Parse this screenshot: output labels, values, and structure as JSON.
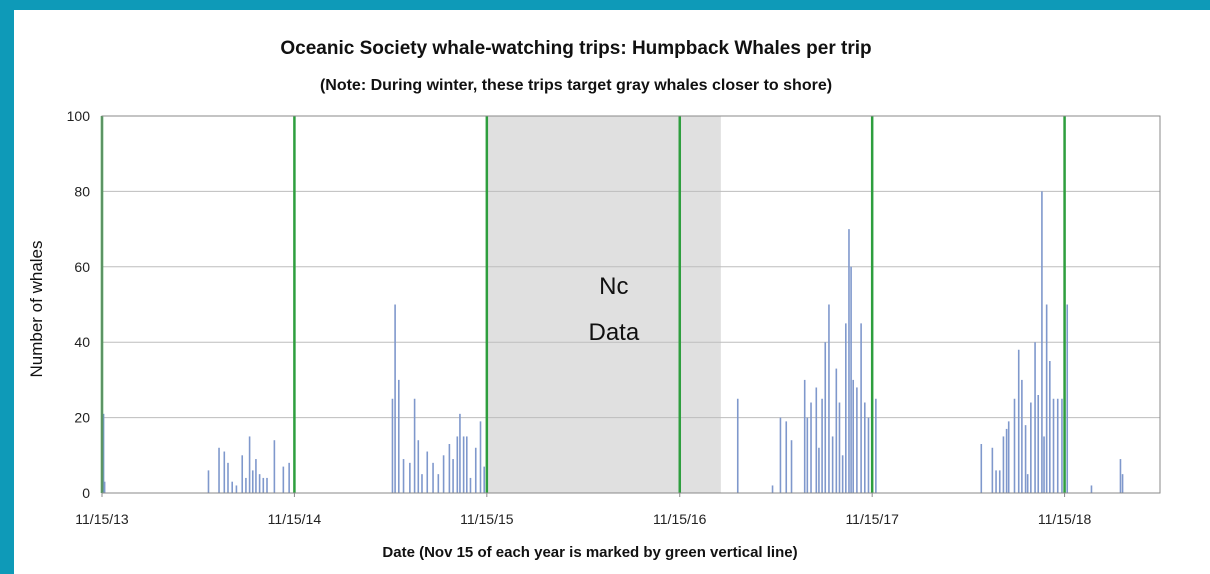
{
  "chart_data": {
    "type": "bar",
    "title": "Oceanic Society whale-watching trips:  Humpback Whales per trip",
    "subtitle": "(Note:  During winter, these trips target gray whales closer to shore)",
    "xlabel": "Date (Nov 15 of each year is marked by green vertical line)",
    "ylabel": "Number of whales",
    "ylim": [
      0,
      100
    ],
    "yticks": [
      0,
      20,
      40,
      60,
      80,
      100
    ],
    "xlim": [
      "2013-11-15",
      "2019-05-15"
    ],
    "xtick_labels": [
      "11/15/13",
      "11/15/14",
      "11/15/15",
      "11/15/16",
      "11/15/17",
      "11/15/18"
    ],
    "grid": "horizontal",
    "bar_color": "#7f98cc",
    "year_marker_color": "#2e9e3e",
    "year_markers": [
      "2013-11-15",
      "2014-11-15",
      "2015-11-15",
      "2016-11-15",
      "2017-11-15",
      "2018-11-15"
    ],
    "no_data_region": {
      "start": "2015-11-15",
      "end": "2017-02-01",
      "label_line1": "Nc",
      "label_line2": "Data",
      "color": "#e0e0e0"
    },
    "values": [
      [
        "2013-11-18",
        21
      ],
      [
        "2013-11-20",
        3
      ],
      [
        "2014-06-05",
        6
      ],
      [
        "2014-06-25",
        12
      ],
      [
        "2014-07-05",
        11
      ],
      [
        "2014-07-12",
        8
      ],
      [
        "2014-07-20",
        3
      ],
      [
        "2014-07-28",
        2
      ],
      [
        "2014-08-08",
        10
      ],
      [
        "2014-08-15",
        4
      ],
      [
        "2014-08-22",
        15
      ],
      [
        "2014-08-28",
        6
      ],
      [
        "2014-09-03",
        9
      ],
      [
        "2014-09-10",
        5
      ],
      [
        "2014-09-17",
        4
      ],
      [
        "2014-09-24",
        4
      ],
      [
        "2014-10-08",
        14
      ],
      [
        "2014-10-25",
        7
      ],
      [
        "2014-11-05",
        8
      ],
      [
        "2015-05-20",
        25
      ],
      [
        "2015-05-25",
        50
      ],
      [
        "2015-06-01",
        30
      ],
      [
        "2015-06-10",
        9
      ],
      [
        "2015-06-22",
        8
      ],
      [
        "2015-07-01",
        25
      ],
      [
        "2015-07-08",
        14
      ],
      [
        "2015-07-15",
        5
      ],
      [
        "2015-07-25",
        11
      ],
      [
        "2015-08-05",
        8
      ],
      [
        "2015-08-15",
        5
      ],
      [
        "2015-08-25",
        10
      ],
      [
        "2015-09-05",
        13
      ],
      [
        "2015-09-12",
        9
      ],
      [
        "2015-09-20",
        15
      ],
      [
        "2015-09-25",
        21
      ],
      [
        "2015-10-02",
        15
      ],
      [
        "2015-10-08",
        15
      ],
      [
        "2015-10-15",
        4
      ],
      [
        "2015-10-25",
        12
      ],
      [
        "2015-11-03",
        19
      ],
      [
        "2015-11-10",
        7
      ],
      [
        "2017-03-05",
        25
      ],
      [
        "2017-05-10",
        2
      ],
      [
        "2017-05-25",
        20
      ],
      [
        "2017-06-05",
        19
      ],
      [
        "2017-06-15",
        14
      ],
      [
        "2017-07-10",
        30
      ],
      [
        "2017-07-15",
        20
      ],
      [
        "2017-07-22",
        24
      ],
      [
        "2017-08-01",
        28
      ],
      [
        "2017-08-06",
        12
      ],
      [
        "2017-08-12",
        25
      ],
      [
        "2017-08-18",
        40
      ],
      [
        "2017-08-25",
        50
      ],
      [
        "2017-09-01",
        15
      ],
      [
        "2017-09-08",
        33
      ],
      [
        "2017-09-14",
        24
      ],
      [
        "2017-09-20",
        10
      ],
      [
        "2017-09-26",
        45
      ],
      [
        "2017-10-02",
        70
      ],
      [
        "2017-10-06",
        60
      ],
      [
        "2017-10-10",
        30
      ],
      [
        "2017-10-17",
        28
      ],
      [
        "2017-10-25",
        45
      ],
      [
        "2017-11-01",
        24
      ],
      [
        "2017-11-08",
        20
      ],
      [
        "2017-11-22",
        25
      ],
      [
        "2018-06-10",
        13
      ],
      [
        "2018-07-01",
        12
      ],
      [
        "2018-07-08",
        6
      ],
      [
        "2018-07-15",
        6
      ],
      [
        "2018-07-22",
        15
      ],
      [
        "2018-07-28",
        17
      ],
      [
        "2018-08-01",
        19
      ],
      [
        "2018-08-12",
        25
      ],
      [
        "2018-08-20",
        38
      ],
      [
        "2018-08-26",
        30
      ],
      [
        "2018-09-02",
        18
      ],
      [
        "2018-09-06",
        5
      ],
      [
        "2018-09-12",
        24
      ],
      [
        "2018-09-20",
        40
      ],
      [
        "2018-09-26",
        26
      ],
      [
        "2018-10-03",
        80
      ],
      [
        "2018-10-07",
        15
      ],
      [
        "2018-10-12",
        50
      ],
      [
        "2018-10-18",
        35
      ],
      [
        "2018-10-25",
        25
      ],
      [
        "2018-11-02",
        25
      ],
      [
        "2018-11-10",
        25
      ],
      [
        "2018-11-20",
        50
      ],
      [
        "2019-01-05",
        2
      ],
      [
        "2019-03-01",
        9
      ],
      [
        "2019-03-05",
        5
      ]
    ]
  }
}
